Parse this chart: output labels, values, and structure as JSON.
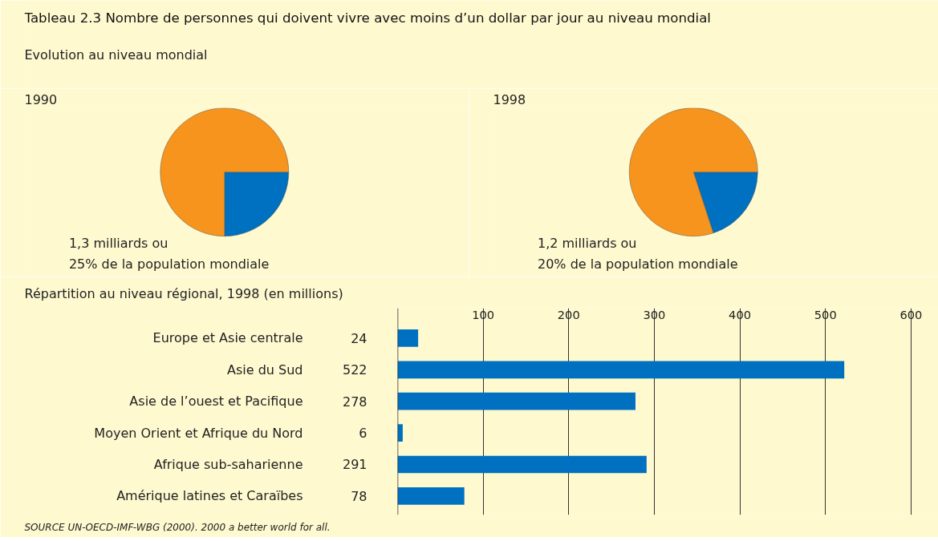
{
  "chart_data": [
    {
      "type": "other",
      "title": "Tableau 2.3  Nombre de personnes qui doivent vivre avec moins d’un dollar par jour au niveau mondial",
      "subtitle": "Evolution au niveau mondial"
    },
    {
      "type": "pie",
      "title": "1990",
      "categories": [
        null,
        null
      ],
      "values": [
        25,
        75
      ],
      "colors": [
        "#0070c0",
        "#f7941d"
      ],
      "annotations": [
        "1,3 milliards ou",
        "25% de la population mondiale"
      ]
    },
    {
      "type": "pie",
      "title": "1998",
      "categories": [
        null,
        null
      ],
      "values": [
        20,
        80
      ],
      "colors": [
        "#0070c0",
        "#f7941d"
      ],
      "annotations": [
        "1,2 milliards ou",
        "20% de la population mondiale"
      ]
    },
    {
      "type": "bar",
      "orientation": "horizontal",
      "title": "Répartition au niveau régional, 1998 (en millions)",
      "categories": [
        "Europe et Asie centrale",
        "Asie du Sud",
        "Asie de l’ouest et Pacifique",
        "Moyen Orient et Afrique du Nord",
        "Afrique sub-saharienne",
        "Amérique latines et Caraïbes"
      ],
      "values": [
        24,
        522,
        278,
        6,
        291,
        78
      ],
      "color": "#0070c0",
      "data_labels": true,
      "xlim": [
        0,
        632
      ],
      "xticks": [
        100,
        200,
        300,
        400,
        500,
        600
      ],
      "grid": "x",
      "annotations": [
        "SOURCE   UN-OECD-IMF-WBG (2000). 2000 a better world for all."
      ]
    }
  ]
}
